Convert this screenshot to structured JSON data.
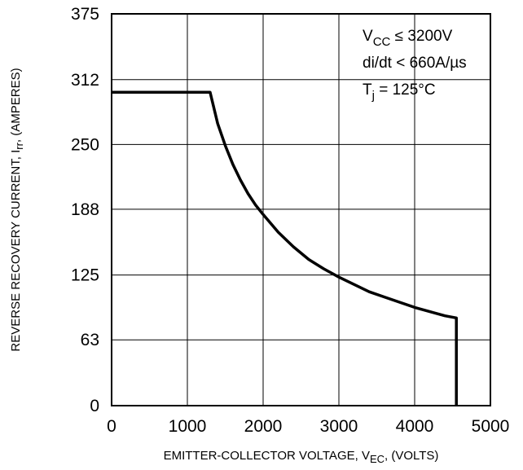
{
  "chart_data": {
    "type": "line",
    "xlabel": {
      "main": "EMITTER-COLLECTOR VOLTAGE, V",
      "sub": "EC",
      "tail": ", (VOLTS)"
    },
    "ylabel": {
      "main": "REVERSE RECOVERY CURRENT, I",
      "sub": "rr",
      "tail": ", (AMPERES)"
    },
    "xlim": [
      0,
      5000
    ],
    "ylim": [
      0,
      375
    ],
    "xticks": [
      0,
      1000,
      2000,
      3000,
      4000,
      5000
    ],
    "yticks": [
      0,
      63,
      125,
      188,
      250,
      312,
      375
    ],
    "grid": true,
    "annotations": [
      {
        "main": "V",
        "sub": "CC",
        "tail": " ≤ 3200V"
      },
      {
        "main": "di/dt < 660A/µs",
        "sub": "",
        "tail": ""
      },
      {
        "main": "T",
        "sub": "j",
        "tail": " = 125°C"
      }
    ],
    "series": [
      {
        "x": [
          0,
          1300,
          1400,
          1500,
          1600,
          1700,
          1800,
          1900,
          2000,
          2200,
          2400,
          2600,
          2800,
          3000,
          3200,
          3400,
          3600,
          3800,
          4000,
          4200,
          4400,
          4550,
          4550,
          4550
        ],
        "y": [
          300,
          300,
          270,
          249,
          231,
          216,
          203,
          192,
          183,
          166,
          152,
          140,
          131,
          123,
          116,
          109,
          104,
          99,
          94,
          90,
          86,
          84,
          84,
          0
        ]
      }
    ]
  }
}
